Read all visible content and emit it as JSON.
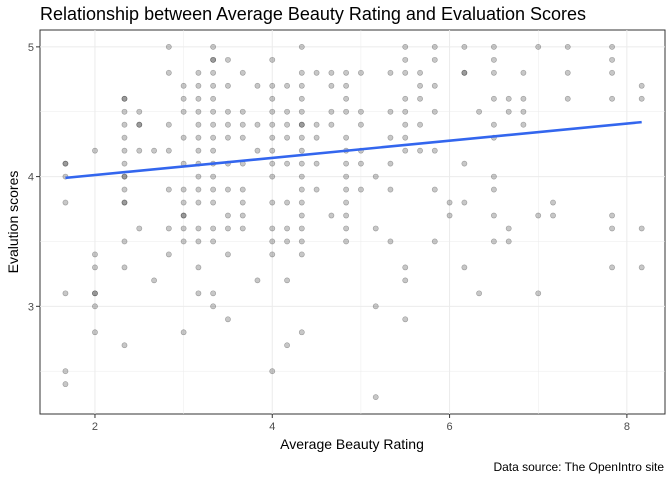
{
  "chart_data": {
    "type": "scatter",
    "title": "Relationship between Average Beauty Rating and Evaluation Scores",
    "xlabel": "Average Beauty Rating",
    "ylabel": "Evalution scores",
    "caption": "Data source: The OpenIntro site",
    "xlim": [
      1.38,
      8.43
    ],
    "ylim": [
      2.17,
      5.13
    ],
    "x_ticks": [
      2,
      4,
      6,
      8
    ],
    "y_ticks": [
      3,
      4,
      5
    ],
    "x_tick_labels": [
      "2",
      "4",
      "6",
      "8"
    ],
    "y_tick_labels": [
      "3",
      "4",
      "5"
    ],
    "grid": true,
    "point_color": "#000000",
    "point_alpha": 0.22,
    "trend_color": "#3366ee",
    "trend_line": {
      "x": [
        1.667,
        8.167
      ],
      "y": [
        3.99,
        4.42
      ]
    },
    "points": [
      [
        1.667,
        4.1
      ],
      [
        1.667,
        4.1
      ],
      [
        1.667,
        4.0
      ],
      [
        1.667,
        3.8
      ],
      [
        1.667,
        3.1
      ],
      [
        1.667,
        2.5
      ],
      [
        1.667,
        2.4
      ],
      [
        2.0,
        4.2
      ],
      [
        2.0,
        3.4
      ],
      [
        2.0,
        3.3
      ],
      [
        2.0,
        3.1
      ],
      [
        2.0,
        3.1
      ],
      [
        2.0,
        3.0
      ],
      [
        2.0,
        2.8
      ],
      [
        2.333,
        4.6
      ],
      [
        2.333,
        4.6
      ],
      [
        2.333,
        4.5
      ],
      [
        2.333,
        4.4
      ],
      [
        2.333,
        4.3
      ],
      [
        2.333,
        4.2
      ],
      [
        2.333,
        4.1
      ],
      [
        2.333,
        4.0
      ],
      [
        2.333,
        4.0
      ],
      [
        2.333,
        3.9
      ],
      [
        2.333,
        3.8
      ],
      [
        2.333,
        3.8
      ],
      [
        2.333,
        3.5
      ],
      [
        2.333,
        3.3
      ],
      [
        2.333,
        2.7
      ],
      [
        2.5,
        4.5
      ],
      [
        2.5,
        4.4
      ],
      [
        2.5,
        4.4
      ],
      [
        2.5,
        4.2
      ],
      [
        2.5,
        3.6
      ],
      [
        2.667,
        4.2
      ],
      [
        2.667,
        3.2
      ],
      [
        2.833,
        5.0
      ],
      [
        2.833,
        4.8
      ],
      [
        2.833,
        4.4
      ],
      [
        2.833,
        4.2
      ],
      [
        2.833,
        3.9
      ],
      [
        2.833,
        3.6
      ],
      [
        2.833,
        3.4
      ],
      [
        3.0,
        4.7
      ],
      [
        3.0,
        4.6
      ],
      [
        3.0,
        4.5
      ],
      [
        3.0,
        4.3
      ],
      [
        3.0,
        4.1
      ],
      [
        3.0,
        3.9
      ],
      [
        3.0,
        3.8
      ],
      [
        3.0,
        3.7
      ],
      [
        3.0,
        3.7
      ],
      [
        3.0,
        3.6
      ],
      [
        3.0,
        3.5
      ],
      [
        3.0,
        2.8
      ],
      [
        3.167,
        4.8
      ],
      [
        3.167,
        4.7
      ],
      [
        3.167,
        4.6
      ],
      [
        3.167,
        4.5
      ],
      [
        3.167,
        4.4
      ],
      [
        3.167,
        4.3
      ],
      [
        3.167,
        4.2
      ],
      [
        3.167,
        4.1
      ],
      [
        3.167,
        4.0
      ],
      [
        3.167,
        3.9
      ],
      [
        3.167,
        3.8
      ],
      [
        3.167,
        3.6
      ],
      [
        3.167,
        3.5
      ],
      [
        3.167,
        3.3
      ],
      [
        3.167,
        3.1
      ],
      [
        3.333,
        5.0
      ],
      [
        3.333,
        4.9
      ],
      [
        3.333,
        4.9
      ],
      [
        3.333,
        4.8
      ],
      [
        3.333,
        4.7
      ],
      [
        3.333,
        4.6
      ],
      [
        3.333,
        4.5
      ],
      [
        3.333,
        4.4
      ],
      [
        3.333,
        4.3
      ],
      [
        3.333,
        4.2
      ],
      [
        3.333,
        4.1
      ],
      [
        3.333,
        4.0
      ],
      [
        3.333,
        3.9
      ],
      [
        3.333,
        3.8
      ],
      [
        3.333,
        3.6
      ],
      [
        3.333,
        3.5
      ],
      [
        3.333,
        3.1
      ],
      [
        3.333,
        3.0
      ],
      [
        3.5,
        4.9
      ],
      [
        3.5,
        4.7
      ],
      [
        3.5,
        4.5
      ],
      [
        3.5,
        4.4
      ],
      [
        3.5,
        4.3
      ],
      [
        3.5,
        4.1
      ],
      [
        3.5,
        3.9
      ],
      [
        3.5,
        3.7
      ],
      [
        3.5,
        3.6
      ],
      [
        3.5,
        3.4
      ],
      [
        3.5,
        2.9
      ],
      [
        3.667,
        4.8
      ],
      [
        3.667,
        4.5
      ],
      [
        3.667,
        4.4
      ],
      [
        3.667,
        4.3
      ],
      [
        3.667,
        4.1
      ],
      [
        3.667,
        3.9
      ],
      [
        3.667,
        3.8
      ],
      [
        3.667,
        3.7
      ],
      [
        3.667,
        3.6
      ],
      [
        3.833,
        4.7
      ],
      [
        3.833,
        4.4
      ],
      [
        3.833,
        4.2
      ],
      [
        3.833,
        3.2
      ],
      [
        4.0,
        4.9
      ],
      [
        4.0,
        4.7
      ],
      [
        4.0,
        4.6
      ],
      [
        4.0,
        4.5
      ],
      [
        4.0,
        4.4
      ],
      [
        4.0,
        4.3
      ],
      [
        4.0,
        4.2
      ],
      [
        4.0,
        4.1
      ],
      [
        4.0,
        4.0
      ],
      [
        4.0,
        3.8
      ],
      [
        4.0,
        3.6
      ],
      [
        4.0,
        3.5
      ],
      [
        4.0,
        3.4
      ],
      [
        4.0,
        2.5
      ],
      [
        4.167,
        4.7
      ],
      [
        4.167,
        4.5
      ],
      [
        4.167,
        4.4
      ],
      [
        4.167,
        4.3
      ],
      [
        4.167,
        4.1
      ],
      [
        4.167,
        3.8
      ],
      [
        4.167,
        3.6
      ],
      [
        4.167,
        3.5
      ],
      [
        4.167,
        3.2
      ],
      [
        4.167,
        2.7
      ],
      [
        4.333,
        5.0
      ],
      [
        4.333,
        4.8
      ],
      [
        4.333,
        4.7
      ],
      [
        4.333,
        4.6
      ],
      [
        4.333,
        4.5
      ],
      [
        4.333,
        4.4
      ],
      [
        4.333,
        4.4
      ],
      [
        4.333,
        4.3
      ],
      [
        4.333,
        4.2
      ],
      [
        4.333,
        4.1
      ],
      [
        4.333,
        4.0
      ],
      [
        4.333,
        3.9
      ],
      [
        4.333,
        3.8
      ],
      [
        4.333,
        3.7
      ],
      [
        4.333,
        3.6
      ],
      [
        4.333,
        3.5
      ],
      [
        4.333,
        3.4
      ],
      [
        4.333,
        2.8
      ],
      [
        4.5,
        4.8
      ],
      [
        4.5,
        4.4
      ],
      [
        4.5,
        4.3
      ],
      [
        4.5,
        4.1
      ],
      [
        4.5,
        3.9
      ],
      [
        4.667,
        4.8
      ],
      [
        4.667,
        4.7
      ],
      [
        4.667,
        4.5
      ],
      [
        4.667,
        4.4
      ],
      [
        4.667,
        3.7
      ],
      [
        4.833,
        4.8
      ],
      [
        4.833,
        4.7
      ],
      [
        4.833,
        4.6
      ],
      [
        4.833,
        4.5
      ],
      [
        4.833,
        4.3
      ],
      [
        4.833,
        4.2
      ],
      [
        4.833,
        4.1
      ],
      [
        4.833,
        4.0
      ],
      [
        4.833,
        3.9
      ],
      [
        4.833,
        3.8
      ],
      [
        4.833,
        3.7
      ],
      [
        4.833,
        3.6
      ],
      [
        4.833,
        3.5
      ],
      [
        5.0,
        4.8
      ],
      [
        5.0,
        4.5
      ],
      [
        5.0,
        4.4
      ],
      [
        5.0,
        4.2
      ],
      [
        5.0,
        4.1
      ],
      [
        5.0,
        3.9
      ],
      [
        5.167,
        4.0
      ],
      [
        5.167,
        3.6
      ],
      [
        5.167,
        3.0
      ],
      [
        5.167,
        2.3
      ],
      [
        5.333,
        4.8
      ],
      [
        5.333,
        4.5
      ],
      [
        5.333,
        4.3
      ],
      [
        5.333,
        4.1
      ],
      [
        5.333,
        3.9
      ],
      [
        5.333,
        3.5
      ],
      [
        5.5,
        5.0
      ],
      [
        5.5,
        4.9
      ],
      [
        5.5,
        4.8
      ],
      [
        5.5,
        4.6
      ],
      [
        5.5,
        4.5
      ],
      [
        5.5,
        4.4
      ],
      [
        5.5,
        4.3
      ],
      [
        5.5,
        4.2
      ],
      [
        5.5,
        3.3
      ],
      [
        5.5,
        3.2
      ],
      [
        5.5,
        2.9
      ],
      [
        5.667,
        4.8
      ],
      [
        5.667,
        4.7
      ],
      [
        5.667,
        4.6
      ],
      [
        5.667,
        4.4
      ],
      [
        5.667,
        4.2
      ],
      [
        5.833,
        5.0
      ],
      [
        5.833,
        4.9
      ],
      [
        5.833,
        4.7
      ],
      [
        5.833,
        4.5
      ],
      [
        5.833,
        4.2
      ],
      [
        5.833,
        3.9
      ],
      [
        5.833,
        3.5
      ],
      [
        6.0,
        3.8
      ],
      [
        6.0,
        3.7
      ],
      [
        6.167,
        5.0
      ],
      [
        6.167,
        4.8
      ],
      [
        6.167,
        4.8
      ],
      [
        6.167,
        4.1
      ],
      [
        6.167,
        3.8
      ],
      [
        6.167,
        3.3
      ],
      [
        6.333,
        4.5
      ],
      [
        6.333,
        3.1
      ],
      [
        6.5,
        5.0
      ],
      [
        6.5,
        4.9
      ],
      [
        6.5,
        4.8
      ],
      [
        6.5,
        4.6
      ],
      [
        6.5,
        4.4
      ],
      [
        6.5,
        4.3
      ],
      [
        6.5,
        4.0
      ],
      [
        6.5,
        3.9
      ],
      [
        6.5,
        3.7
      ],
      [
        6.5,
        3.5
      ],
      [
        6.667,
        4.6
      ],
      [
        6.667,
        4.5
      ],
      [
        6.667,
        3.6
      ],
      [
        6.667,
        3.5
      ],
      [
        6.833,
        4.8
      ],
      [
        6.833,
        4.6
      ],
      [
        6.833,
        4.5
      ],
      [
        6.833,
        4.4
      ],
      [
        7.0,
        5.0
      ],
      [
        7.0,
        3.7
      ],
      [
        7.0,
        3.1
      ],
      [
        7.167,
        3.8
      ],
      [
        7.167,
        3.7
      ],
      [
        7.333,
        5.0
      ],
      [
        7.333,
        4.8
      ],
      [
        7.333,
        4.6
      ],
      [
        7.833,
        5.0
      ],
      [
        7.833,
        4.9
      ],
      [
        7.833,
        4.8
      ],
      [
        7.833,
        4.6
      ],
      [
        7.833,
        3.7
      ],
      [
        7.833,
        3.6
      ],
      [
        7.833,
        3.3
      ],
      [
        8.167,
        4.7
      ],
      [
        8.167,
        4.6
      ],
      [
        8.167,
        3.6
      ],
      [
        8.167,
        3.3
      ]
    ]
  }
}
